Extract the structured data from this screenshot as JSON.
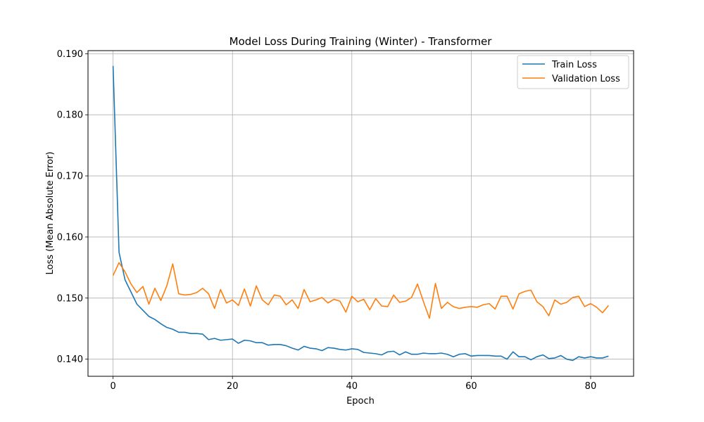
{
  "chart_data": {
    "type": "line",
    "title": "Model Loss During Training (Winter) - Transformer",
    "xlabel": "Epoch",
    "ylabel": "Loss (Mean Absolute Error)",
    "xlim": [
      -4.2,
      87.2
    ],
    "ylim": [
      0.1372,
      0.1905
    ],
    "xticks": [
      0,
      20,
      40,
      60,
      80
    ],
    "yticks": [
      0.14,
      0.15,
      0.16,
      0.17,
      0.18,
      0.19
    ],
    "xtick_labels": [
      "0",
      "20",
      "40",
      "60",
      "80"
    ],
    "ytick_labels": [
      "0.140",
      "0.150",
      "0.160",
      "0.170",
      "0.180",
      "0.190"
    ],
    "grid": true,
    "legend_position": "top-right",
    "series": [
      {
        "name": "Train Loss",
        "color": "#1f77b4",
        "x": [
          0,
          1,
          2,
          3,
          4,
          5,
          6,
          7,
          8,
          9,
          10,
          11,
          12,
          13,
          14,
          15,
          16,
          17,
          18,
          19,
          20,
          21,
          22,
          23,
          24,
          25,
          26,
          27,
          28,
          29,
          30,
          31,
          32,
          33,
          34,
          35,
          36,
          37,
          38,
          39,
          40,
          41,
          42,
          43,
          44,
          45,
          46,
          47,
          48,
          49,
          50,
          51,
          52,
          53,
          54,
          55,
          56,
          57,
          58,
          59,
          60,
          61,
          62,
          63,
          64,
          65,
          66,
          67,
          68,
          69,
          70,
          71,
          72,
          73,
          74,
          75,
          76,
          77,
          78,
          79,
          80,
          81,
          82,
          83
        ],
        "values": [
          0.188,
          0.1575,
          0.153,
          0.151,
          0.149,
          0.148,
          0.147,
          0.1465,
          0.1458,
          0.1452,
          0.1449,
          0.1444,
          0.1444,
          0.1442,
          0.1442,
          0.1441,
          0.1432,
          0.1434,
          0.1431,
          0.1432,
          0.1433,
          0.1426,
          0.1431,
          0.143,
          0.1427,
          0.1427,
          0.1423,
          0.1424,
          0.1424,
          0.1422,
          0.1418,
          0.1415,
          0.1421,
          0.1418,
          0.1417,
          0.1414,
          0.1419,
          0.1418,
          0.1416,
          0.1415,
          0.1417,
          0.1416,
          0.1411,
          0.141,
          0.1409,
          0.1407,
          0.1412,
          0.1413,
          0.1407,
          0.1412,
          0.1408,
          0.1408,
          0.141,
          0.1409,
          0.1409,
          0.141,
          0.1408,
          0.1404,
          0.1408,
          0.1409,
          0.1405,
          0.1406,
          0.1406,
          0.1406,
          0.1405,
          0.1405,
          0.14,
          0.1412,
          0.1404,
          0.1404,
          0.1399,
          0.1404,
          0.1407,
          0.1401,
          0.1402,
          0.1406,
          0.14,
          0.1398,
          0.1404,
          0.1402,
          0.1404,
          0.1402,
          0.1402,
          0.1405
        ]
      },
      {
        "name": "Validation Loss",
        "color": "#ff7f0e",
        "x": [
          0,
          1,
          2,
          3,
          4,
          5,
          6,
          7,
          8,
          9,
          10,
          11,
          12,
          13,
          14,
          15,
          16,
          17,
          18,
          19,
          20,
          21,
          22,
          23,
          24,
          25,
          26,
          27,
          28,
          29,
          30,
          31,
          32,
          33,
          34,
          35,
          36,
          37,
          38,
          39,
          40,
          41,
          42,
          43,
          44,
          45,
          46,
          47,
          48,
          49,
          50,
          51,
          52,
          53,
          54,
          55,
          56,
          57,
          58,
          59,
          60,
          61,
          62,
          63,
          64,
          65,
          66,
          67,
          68,
          69,
          70,
          71,
          72,
          73,
          74,
          75,
          76,
          77,
          78,
          79,
          80,
          81,
          82,
          83
        ],
        "values": [
          0.1537,
          0.1558,
          0.1543,
          0.1523,
          0.1509,
          0.1519,
          0.149,
          0.1516,
          0.1496,
          0.152,
          0.1556,
          0.1507,
          0.1505,
          0.1506,
          0.1509,
          0.1516,
          0.1507,
          0.1483,
          0.1514,
          0.1492,
          0.1497,
          0.1488,
          0.1515,
          0.1487,
          0.152,
          0.1497,
          0.1489,
          0.1505,
          0.1503,
          0.1489,
          0.1497,
          0.1483,
          0.1514,
          0.1494,
          0.1497,
          0.1501,
          0.1492,
          0.1498,
          0.1495,
          0.1477,
          0.1503,
          0.1494,
          0.1498,
          0.1481,
          0.1499,
          0.1487,
          0.1486,
          0.1505,
          0.1493,
          0.1495,
          0.1501,
          0.1523,
          0.1494,
          0.1467,
          0.1524,
          0.1483,
          0.1493,
          0.1486,
          0.1483,
          0.1485,
          0.1486,
          0.1485,
          0.1489,
          0.1491,
          0.1482,
          0.1503,
          0.1503,
          0.1482,
          0.1507,
          0.1511,
          0.1513,
          0.1494,
          0.1486,
          0.1471,
          0.1497,
          0.149,
          0.1493,
          0.1501,
          0.1503,
          0.1486,
          0.1491,
          0.1485,
          0.1476,
          0.1488
        ]
      }
    ]
  }
}
